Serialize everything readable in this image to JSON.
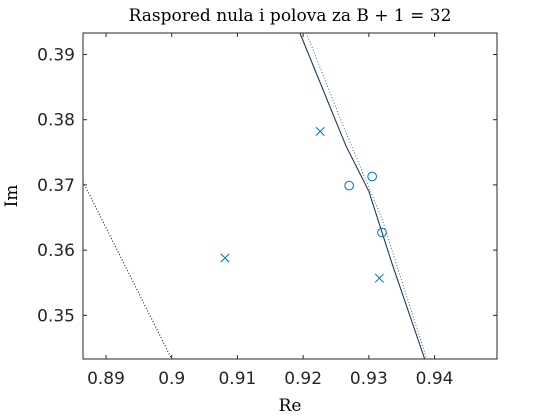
{
  "chart_data": {
    "type": "scatter",
    "title": "Raspored nula i polova za B + 1 = 32",
    "xlabel": "Re",
    "ylabel": "Im",
    "xlim": [
      0.8865,
      0.9495
    ],
    "ylim": [
      0.3433,
      0.3933
    ],
    "xticks": [
      0.89,
      0.9,
      0.91,
      0.92,
      0.93,
      0.94
    ],
    "xtick_labels": [
      "0.89",
      "0.9",
      "0.91",
      "0.92",
      "0.93",
      "0.94"
    ],
    "yticks": [
      0.35,
      0.36,
      0.37,
      0.38,
      0.39
    ],
    "ytick_labels": [
      "0.35",
      "0.36",
      "0.37",
      "0.38",
      "0.39"
    ],
    "grid": false,
    "colors": {
      "markers": "#0072BD",
      "unit_circle": "#1f3a5a",
      "reference": "#4a6a8a",
      "inner": "#000000"
    },
    "series": [
      {
        "marker": "x",
        "x": [
          0.9226,
          0.9081,
          0.9316
        ],
        "y": [
          0.3782,
          0.3588,
          0.3557
        ]
      },
      {
        "marker": "o",
        "x": [
          0.9305,
          0.927,
          0.932
        ],
        "y": [
          0.3713,
          0.3699,
          0.3627
        ]
      }
    ],
    "curves": [
      {
        "style": "solid",
        "x": [
          0.9195,
          0.9265,
          0.93,
          0.9335,
          0.9385
        ],
        "y": [
          0.3933,
          0.376,
          0.369,
          0.358,
          0.3433
        ]
      },
      {
        "style": "dotted",
        "x": [
          0.9205,
          0.926,
          0.932,
          0.9388
        ],
        "y": [
          0.3933,
          0.3793,
          0.3648,
          0.3433
        ]
      },
      {
        "style": "dotted",
        "x": [
          0.8865,
          0.9
        ],
        "y": [
          0.3705,
          0.3433
        ]
      }
    ]
  }
}
